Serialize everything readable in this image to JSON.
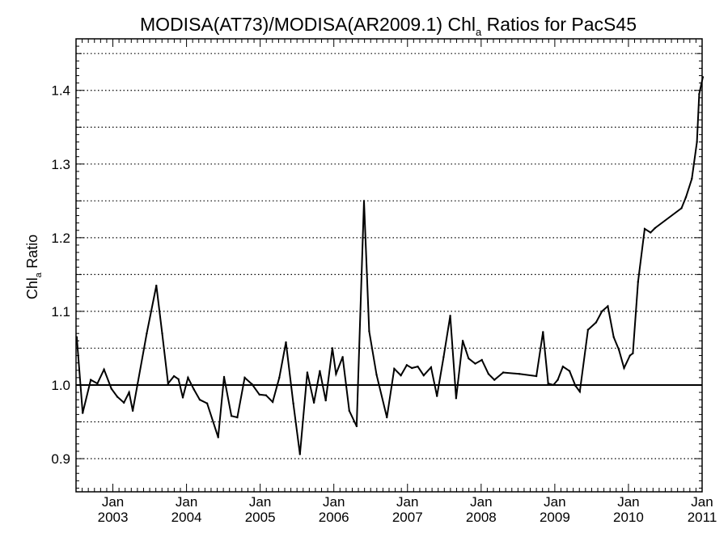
{
  "chart_data": {
    "type": "line",
    "title_main": "MODISA(AT73)/MODISA(AR2009.1)  Chl",
    "title_sub": "a",
    "title_tail": " Ratios for PacS45",
    "ylabel_main": "Chl",
    "ylabel_sub": "a",
    "ylabel_tail": " Ratio",
    "xlim": [
      2002.5,
      2011.0
    ],
    "ylim": [
      0.855,
      1.47
    ],
    "y_ticks": [
      0.9,
      1.0,
      1.1,
      1.2,
      1.3,
      1.4
    ],
    "y_tick_labels": [
      "0.9",
      "1.0",
      "1.1",
      "1.2",
      "1.3",
      "1.4"
    ],
    "y_gridlines": [
      0.95,
      1.05,
      1.15,
      1.25,
      1.35,
      1.45
    ],
    "gridline_style": "dotted",
    "reference_line": 1.0,
    "x_month_label": "Jan",
    "x_ticks": [
      {
        "x": 2003,
        "year": "2003"
      },
      {
        "x": 2004,
        "year": "2004"
      },
      {
        "x": 2005,
        "year": "2005"
      },
      {
        "x": 2006,
        "year": "2006"
      },
      {
        "x": 2007,
        "year": "2007"
      },
      {
        "x": 2008,
        "year": "2008"
      },
      {
        "x": 2009,
        "year": "2009"
      },
      {
        "x": 2010,
        "year": "2010"
      },
      {
        "x": 2011,
        "year": "2011"
      }
    ],
    "series": [
      {
        "x": [
          2002.51,
          2002.59,
          2002.7,
          2002.79,
          2002.88,
          2002.98,
          2003.06,
          2003.15,
          2003.22,
          2003.27,
          2003.46,
          2003.59,
          2003.67,
          2003.75,
          2003.83,
          2003.89,
          2003.95,
          2004.02,
          2004.1,
          2004.18,
          2004.28,
          2004.43,
          2004.51,
          2004.61,
          2004.69,
          2004.79,
          2004.89,
          2004.99,
          2005.08,
          2005.17,
          2005.26,
          2005.35,
          2005.45,
          2005.54,
          2005.64,
          2005.73,
          2005.81,
          2005.89,
          2005.98,
          2006.03,
          2006.12,
          2006.21,
          2006.31,
          2006.41,
          2006.48,
          2006.58,
          2006.72,
          2006.82,
          2006.91,
          2006.99,
          2007.06,
          2007.14,
          2007.22,
          2007.32,
          2007.4,
          2007.49,
          2007.58,
          2007.66,
          2007.75,
          2007.83,
          2007.92,
          2008.01,
          2008.1,
          2008.18,
          2008.3,
          2008.52,
          2008.75,
          2008.84,
          2008.91,
          2008.98,
          2009.04,
          2009.11,
          2009.2,
          2009.28,
          2009.34,
          2009.45,
          2009.56,
          2009.64,
          2009.72,
          2009.8,
          2009.87,
          2009.94,
          2010.02,
          2010.06,
          2010.13,
          2010.22,
          2010.3,
          2010.36,
          2010.72,
          2010.78,
          2010.86,
          2010.93,
          2010.96,
          2011.01
        ],
        "values": [
          1.065,
          0.962,
          1.007,
          1.002,
          1.021,
          0.995,
          0.984,
          0.976,
          0.99,
          0.965,
          1.07,
          1.135,
          1.07,
          1.002,
          1.012,
          1.008,
          0.983,
          1.01,
          0.994,
          0.98,
          0.975,
          0.929,
          1.011,
          0.958,
          0.956,
          1.01,
          1.001,
          0.987,
          0.986,
          0.977,
          1.01,
          1.058,
          0.975,
          0.906,
          1.017,
          0.976,
          1.019,
          0.979,
          1.05,
          1.015,
          1.038,
          0.965,
          0.944,
          1.25,
          1.073,
          1.014,
          0.956,
          1.022,
          1.013,
          1.027,
          1.023,
          1.025,
          1.013,
          1.024,
          0.985,
          1.038,
          1.094,
          0.982,
          1.06,
          1.036,
          1.029,
          1.034,
          1.015,
          1.007,
          1.017,
          1.015,
          1.012,
          1.072,
          1.002,
          1.0,
          1.007,
          1.025,
          1.019,
          0.999,
          0.991,
          1.075,
          1.085,
          1.1,
          1.107,
          1.065,
          1.048,
          1.023,
          1.04,
          1.043,
          1.14,
          1.212,
          1.207,
          1.213,
          1.24,
          1.255,
          1.28,
          1.33,
          1.395,
          1.418
        ]
      }
    ]
  }
}
